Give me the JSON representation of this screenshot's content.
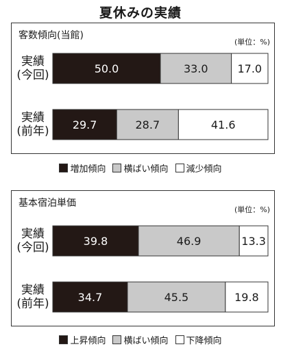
{
  "title": "夏休みの実績",
  "colors": {
    "dark": "#231815",
    "gray": "#c9c9c9",
    "white": "#ffffff"
  },
  "chart_data": [
    {
      "type": "bar",
      "orientation": "horizontal",
      "stacked": true,
      "title": "客数傾向(当館)",
      "unit_note": "(単位：%)",
      "categories": [
        "実績\n(今回)",
        "実績\n(前年)"
      ],
      "series": [
        {
          "name": "増加傾向",
          "color": "#231815",
          "values": [
            50.0,
            29.7
          ]
        },
        {
          "name": "横ばい傾向",
          "color": "#c9c9c9",
          "values": [
            33.0,
            28.7
          ]
        },
        {
          "name": "減少傾向",
          "color": "#ffffff",
          "values": [
            17.0,
            41.6
          ]
        }
      ],
      "xlim": [
        0,
        100
      ],
      "legend": "bottom"
    },
    {
      "type": "bar",
      "orientation": "horizontal",
      "stacked": true,
      "title": "基本宿泊単価",
      "unit_note": "(単位：%)",
      "categories": [
        "実績\n(今回)",
        "実績\n(前年)"
      ],
      "series": [
        {
          "name": "上昇傾向",
          "color": "#231815",
          "values": [
            39.8,
            34.7
          ]
        },
        {
          "name": "横ばい傾向",
          "color": "#c9c9c9",
          "values": [
            46.9,
            45.5
          ]
        },
        {
          "name": "下降傾向",
          "color": "#ffffff",
          "values": [
            13.3,
            19.8
          ]
        }
      ],
      "xlim": [
        0,
        100
      ],
      "legend": "bottom"
    }
  ]
}
